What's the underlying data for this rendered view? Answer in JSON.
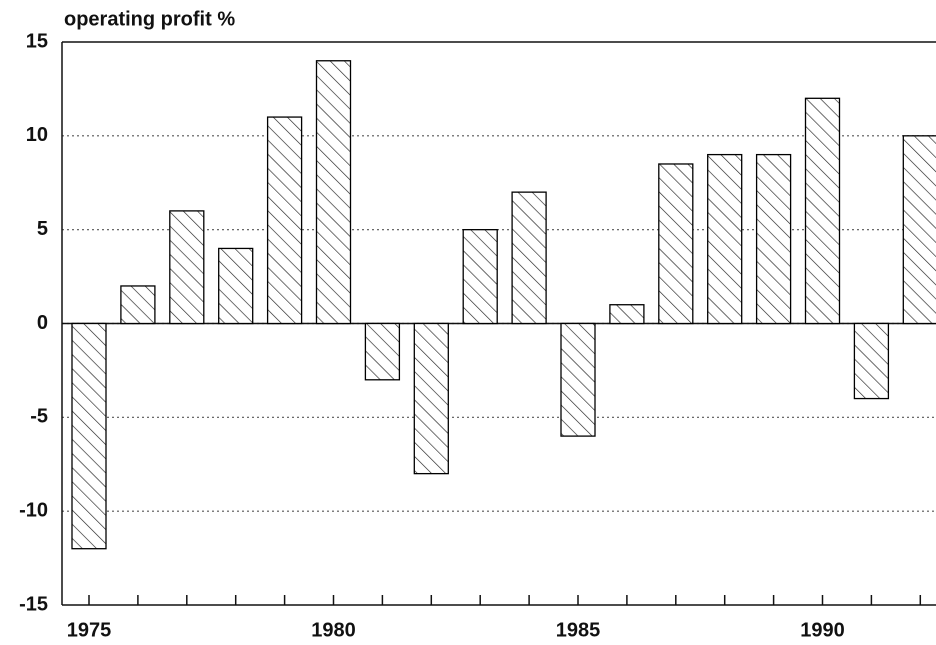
{
  "chart_data": {
    "type": "bar",
    "title": "operating profit %",
    "categories": [
      "1975",
      null,
      null,
      null,
      null,
      "1980",
      null,
      null,
      null,
      null,
      "1985",
      null,
      null,
      null,
      null,
      "1990",
      null,
      null
    ],
    "values": [
      -12,
      2,
      6,
      4,
      11,
      14,
      -3,
      -8,
      5,
      7,
      -6,
      1,
      8.5,
      9,
      9,
      12,
      -4,
      10
    ],
    "color": "#000000",
    "ylim": [
      -15,
      15
    ],
    "yticks": [
      15,
      10,
      5,
      0,
      -5,
      -10,
      -15
    ],
    "grid": true
  }
}
